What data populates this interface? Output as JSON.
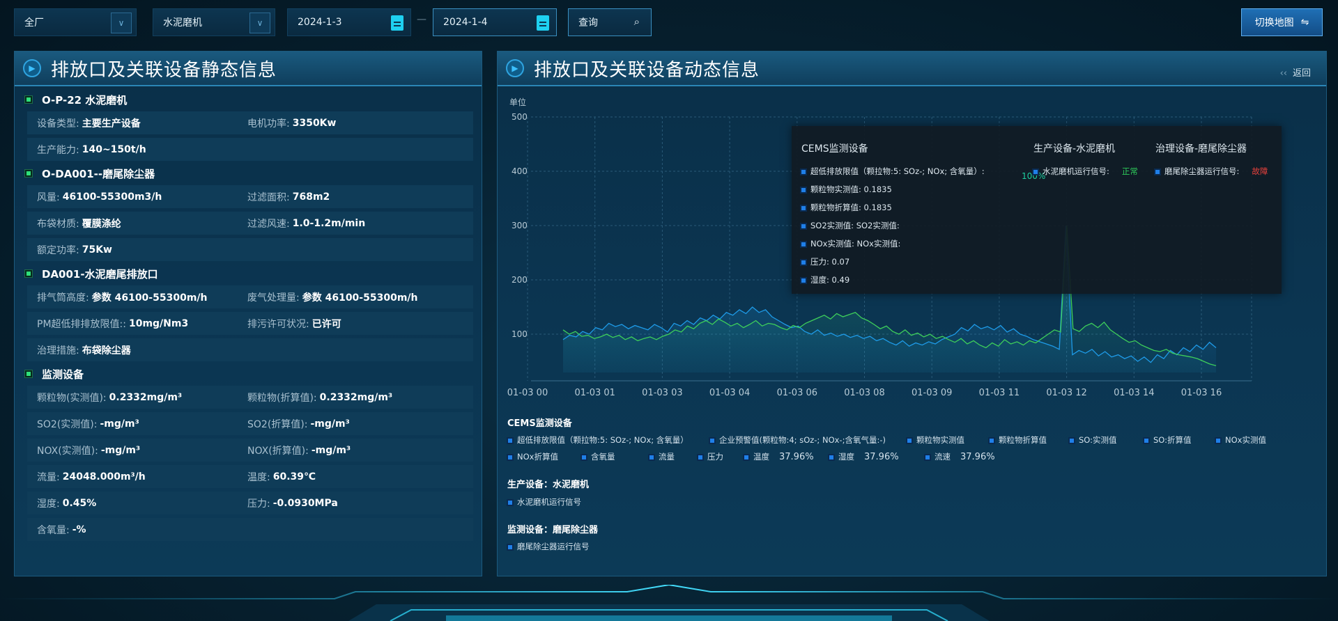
{
  "toolbar": {
    "factory_select": "全厂",
    "device_select": "水泥磨机",
    "start_date": "2024-1-3",
    "date_separator": "—",
    "end_date": "2024-1-4",
    "query_label": "查询",
    "switch_map_label": "切换地图"
  },
  "static_panel": {
    "title": "排放口及关联设备静态信息",
    "sections": [
      {
        "title": "O-P-22 水泥磨机",
        "rows": [
          [
            {
              "label": "设备类型:",
              "value": "主要生产设备"
            },
            {
              "label": "电机功率:",
              "value": "3350Kw"
            }
          ],
          [
            {
              "label": "生产能力:",
              "value": "140~150t/h"
            }
          ]
        ]
      },
      {
        "title": "O-DA001--磨尾除尘器",
        "rows": [
          [
            {
              "label": "风量:",
              "value": "46100-55300m3/h"
            },
            {
              "label": "过滤面积:",
              "value": "768m2"
            }
          ],
          [
            {
              "label": "布袋材质:",
              "value": "覆膜涤纶"
            },
            {
              "label": "过滤风速:",
              "value": "1.0-1.2m/min"
            }
          ],
          [
            {
              "label": "额定功率:",
              "value": "75Kw"
            }
          ]
        ]
      },
      {
        "title": "DA001-水泥磨尾排放口",
        "rows": [
          [
            {
              "label": "排气筒高度:",
              "value": "参数 46100-55300m/h"
            },
            {
              "label": "废气处理量:",
              "value": "参数 46100-55300m/h"
            }
          ],
          [
            {
              "label": "PM超低排排放限值::",
              "value": "10mg/Nm3"
            },
            {
              "label": "排污许可状况:",
              "value": "已许可"
            }
          ],
          [
            {
              "label": "治理措施:",
              "value": "布袋除尘器"
            }
          ]
        ]
      },
      {
        "title": "监测设备",
        "rows": [
          [
            {
              "label": "颗粒物(实测值):",
              "value": "0.2332mg/m³"
            },
            {
              "label": "颗粒物(折算值):",
              "value": "0.2332mg/m³"
            }
          ],
          [
            {
              "label": "SO2(实测值):",
              "value": "-mg/m³"
            },
            {
              "label": "SO2(折算值):",
              "value": "-mg/m³"
            }
          ],
          [
            {
              "label": "NOX(实测值):",
              "value": "-mg/m³"
            },
            {
              "label": "NOX(折算值):",
              "value": "-mg/m³"
            }
          ],
          [
            {
              "label": "流量:",
              "value": "24048.000m³/h"
            },
            {
              "label": "温度:",
              "value": "60.39℃"
            }
          ],
          [
            {
              "label": "湿度:",
              "value": "0.45%"
            },
            {
              "label": "压力:",
              "value": "-0.0930MPa"
            }
          ],
          [
            {
              "label": "含氧量:",
              "value": "-%"
            }
          ]
        ]
      }
    ]
  },
  "dynamic_panel": {
    "title": "排放口及关联设备动态信息",
    "back_label": "返回",
    "tooltip": {
      "cems_title": "CEMS监测设备",
      "cems_items": [
        "超低排放限值（颗拉物:5: SOz-; NOx; 含氧量）:",
        "颗粒物实测值: 0.1835",
        "颗粒物折算值: 0.1835",
        "SO2实测值: SO2实测值:",
        "NOx实测值: NOx实测值:",
        "压力: 0.07",
        "湿度: 0.49"
      ],
      "cems_first_value": "100%",
      "production_title": "生产设备-水泥磨机",
      "production_item": "水泥磨机运行信号:",
      "production_status": "正常",
      "treatment_title": "治理设备-磨尾除尘器",
      "treatment_item": "磨尾除尘器运行信号:",
      "treatment_status": "故障",
      "status_colors": {
        "normal": "#2ecc5a",
        "fault": "#e8413c"
      }
    },
    "legend": {
      "cems_title": "CEMS监测设备",
      "cems_row1": [
        "超低排放限值（颗拉物:5: SOz-; NOx; 含氧量）",
        "企业预警值(颗粒物:4; sOz-; NOx-;含氧气量:-)",
        "颗粒物实测值",
        "颗粒物折算值",
        "SO:实测值",
        "SO:折算值",
        "NOx实测值"
      ],
      "cems_row2": [
        {
          "label": "NOx折算值"
        },
        {
          "label": "含氧量"
        },
        {
          "label": "流量"
        },
        {
          "label": "压力"
        },
        {
          "label": "温度",
          "value": "37.96%"
        },
        {
          "label": "湿度",
          "value": "37.96%"
        },
        {
          "label": "流速",
          "value": "37.96%"
        }
      ],
      "production_title": "生产设备：水泥磨机",
      "production_item": "水泥磨机运行信号",
      "monitor_title": "监测设备：磨尾除尘器",
      "monitor_item": "磨尾除尘器运行信号"
    }
  },
  "chart_data": {
    "type": "area",
    "ylabel": "单位",
    "ylim": [
      0,
      500
    ],
    "yticks": [
      "500",
      "400",
      "300",
      "200",
      "100"
    ],
    "xticks": [
      "01-03 00",
      "01-03 01",
      "01-03 03",
      "01-03 04",
      "01-03 06",
      "01-03 08",
      "01-03 09",
      "01-03 11",
      "01-03 12",
      "01-03 14",
      "01-03 16"
    ],
    "grid": true,
    "series": [
      {
        "color": "#1e9be8",
        "values": [
          90,
          98,
          95,
          105,
          100,
          112,
          108,
          120,
          114,
          118,
          110,
          116,
          112,
          108,
          118,
          112,
          104,
          120,
          115,
          125,
          118,
          130,
          125,
          135,
          128,
          140,
          135,
          145,
          138,
          150,
          140,
          145,
          132,
          125,
          118,
          112,
          115,
          105,
          100,
          108,
          98,
          102,
          96,
          100,
          94,
          98,
          92,
          96,
          88,
          92,
          85,
          80,
          88,
          78,
          84,
          80,
          86,
          82,
          90,
          95,
          100,
          112,
          106,
          118,
          110,
          114,
          108,
          116,
          104,
          110,
          100,
          96,
          90,
          86,
          82,
          78,
          72,
          300,
          62,
          70,
          65,
          72,
          60,
          68,
          58,
          62,
          55,
          60,
          50,
          58,
          48,
          62,
          55,
          70,
          62,
          75,
          68,
          80,
          72,
          85,
          75
        ]
      },
      {
        "color": "#3ecf5a",
        "values": [
          108,
          100,
          105,
          96,
          98,
          92,
          95,
          100,
          94,
          98,
          90,
          95,
          88,
          92,
          95,
          90,
          96,
          100,
          108,
          104,
          115,
          110,
          120,
          125,
          118,
          128,
          122,
          115,
          120,
          112,
          118,
          125,
          115,
          120,
          118,
          112,
          108,
          116,
          112,
          120,
          125,
          130,
          135,
          128,
          138,
          132,
          136,
          140,
          130,
          125,
          118,
          110,
          115,
          105,
          100,
          108,
          98,
          102,
          95,
          100,
          92,
          96,
          90,
          85,
          92,
          82,
          88,
          80,
          75,
          84,
          78,
          90,
          82,
          86,
          80,
          88,
          84,
          92,
          100,
          108,
          104,
          300,
          110,
          105,
          115,
          120,
          112,
          122,
          108,
          100,
          92,
          85,
          88,
          80,
          75,
          70,
          68,
          72,
          65,
          62,
          60,
          58,
          55,
          50,
          45,
          42
        ]
      }
    ]
  }
}
